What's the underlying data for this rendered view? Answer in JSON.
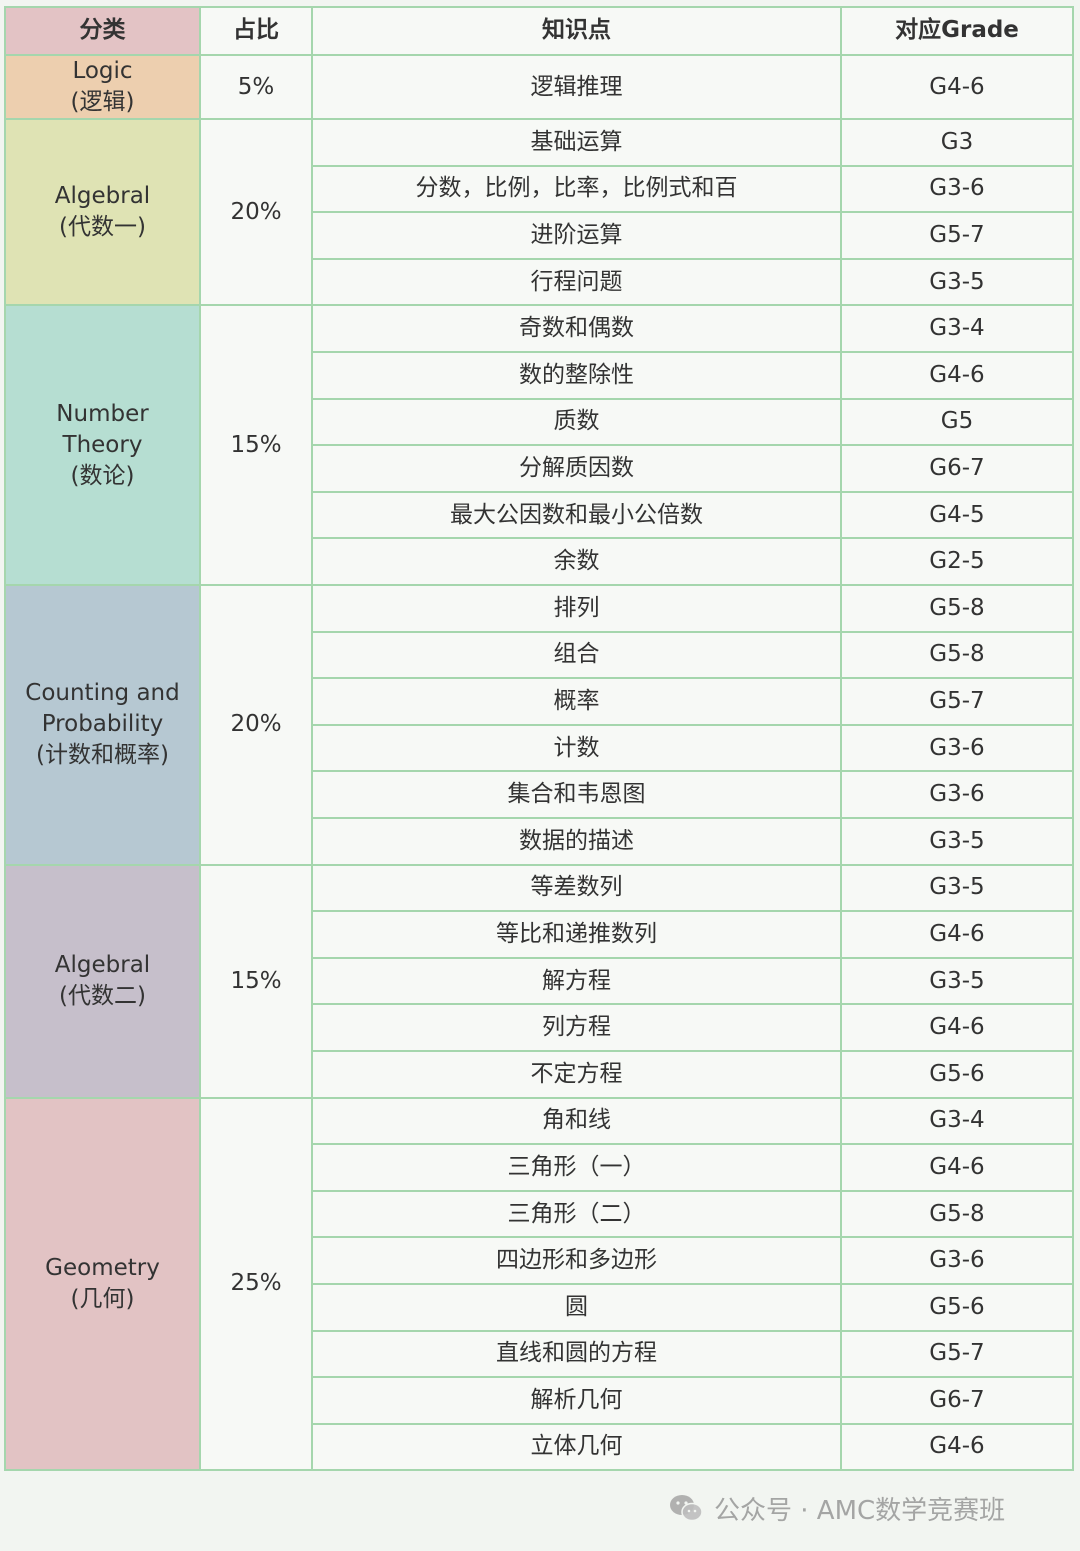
{
  "headers": {
    "category": "分类",
    "percentage": "占比",
    "topic": "知识点",
    "grade": "对应Grade"
  },
  "categories": [
    {
      "name_lines": [
        "Logic",
        "(逻辑)"
      ],
      "percentage": "5%",
      "rows": [
        {
          "topic": "逻辑推理",
          "grade": "G4-6"
        }
      ]
    },
    {
      "name_lines": [
        "Algebral",
        "(代数一)"
      ],
      "percentage": "20%",
      "rows": [
        {
          "topic": "基础运算",
          "grade": "G3"
        },
        {
          "topic": "分数，比例，比率，比例式和百",
          "grade": "G3-6"
        },
        {
          "topic": "进阶运算",
          "grade": "G5-7"
        },
        {
          "topic": "行程问题",
          "grade": "G3-5"
        }
      ]
    },
    {
      "name_lines": [
        "Number",
        "Theory",
        "(数论)"
      ],
      "percentage": "15%",
      "rows": [
        {
          "topic": "奇数和偶数",
          "grade": "G3-4"
        },
        {
          "topic": "数的整除性",
          "grade": "G4-6"
        },
        {
          "topic": "质数",
          "grade": "G5"
        },
        {
          "topic": "分解质因数",
          "grade": "G6-7"
        },
        {
          "topic": "最大公因数和最小公倍数",
          "grade": "G4-5"
        },
        {
          "topic": "余数",
          "grade": "G2-5"
        }
      ]
    },
    {
      "name_lines": [
        "Counting and",
        "Probability",
        "(计数和概率)"
      ],
      "percentage": "20%",
      "rows": [
        {
          "topic": "排列",
          "grade": "G5-8"
        },
        {
          "topic": "组合",
          "grade": "G5-8"
        },
        {
          "topic": "概率",
          "grade": "G5-7"
        },
        {
          "topic": "计数",
          "grade": "G3-6"
        },
        {
          "topic": "集合和韦恩图",
          "grade": "G3-6"
        },
        {
          "topic": "数据的描述",
          "grade": "G3-5"
        }
      ]
    },
    {
      "name_lines": [
        "Algebral",
        "(代数二)"
      ],
      "percentage": "15%",
      "rows": [
        {
          "topic": "等差数列",
          "grade": "G3-5"
        },
        {
          "topic": "等比和递推数列",
          "grade": "G4-6"
        },
        {
          "topic": "解方程",
          "grade": "G3-5"
        },
        {
          "topic": "列方程",
          "grade": "G4-6"
        },
        {
          "topic": "不定方程",
          "grade": "G5-6"
        }
      ]
    },
    {
      "name_lines": [
        "Geometry",
        "(几何)"
      ],
      "percentage": "25%",
      "rows": [
        {
          "topic": "角和线",
          "grade": "G3-4"
        },
        {
          "topic": "三角形（一）",
          "grade": "G4-6"
        },
        {
          "topic": "三角形（二）",
          "grade": "G5-8"
        },
        {
          "topic": "四边形和多边形",
          "grade": "G3-6"
        },
        {
          "topic": "圆",
          "grade": "G5-6"
        },
        {
          "topic": "直线和圆的方程",
          "grade": "G5-7"
        },
        {
          "topic": "解析几何",
          "grade": "G6-7"
        },
        {
          "topic": "立体几何",
          "grade": "G4-6"
        }
      ]
    }
  ],
  "watermark": {
    "icon": "wechat-icon",
    "text": "公众号 · AMC数学竞赛班"
  }
}
